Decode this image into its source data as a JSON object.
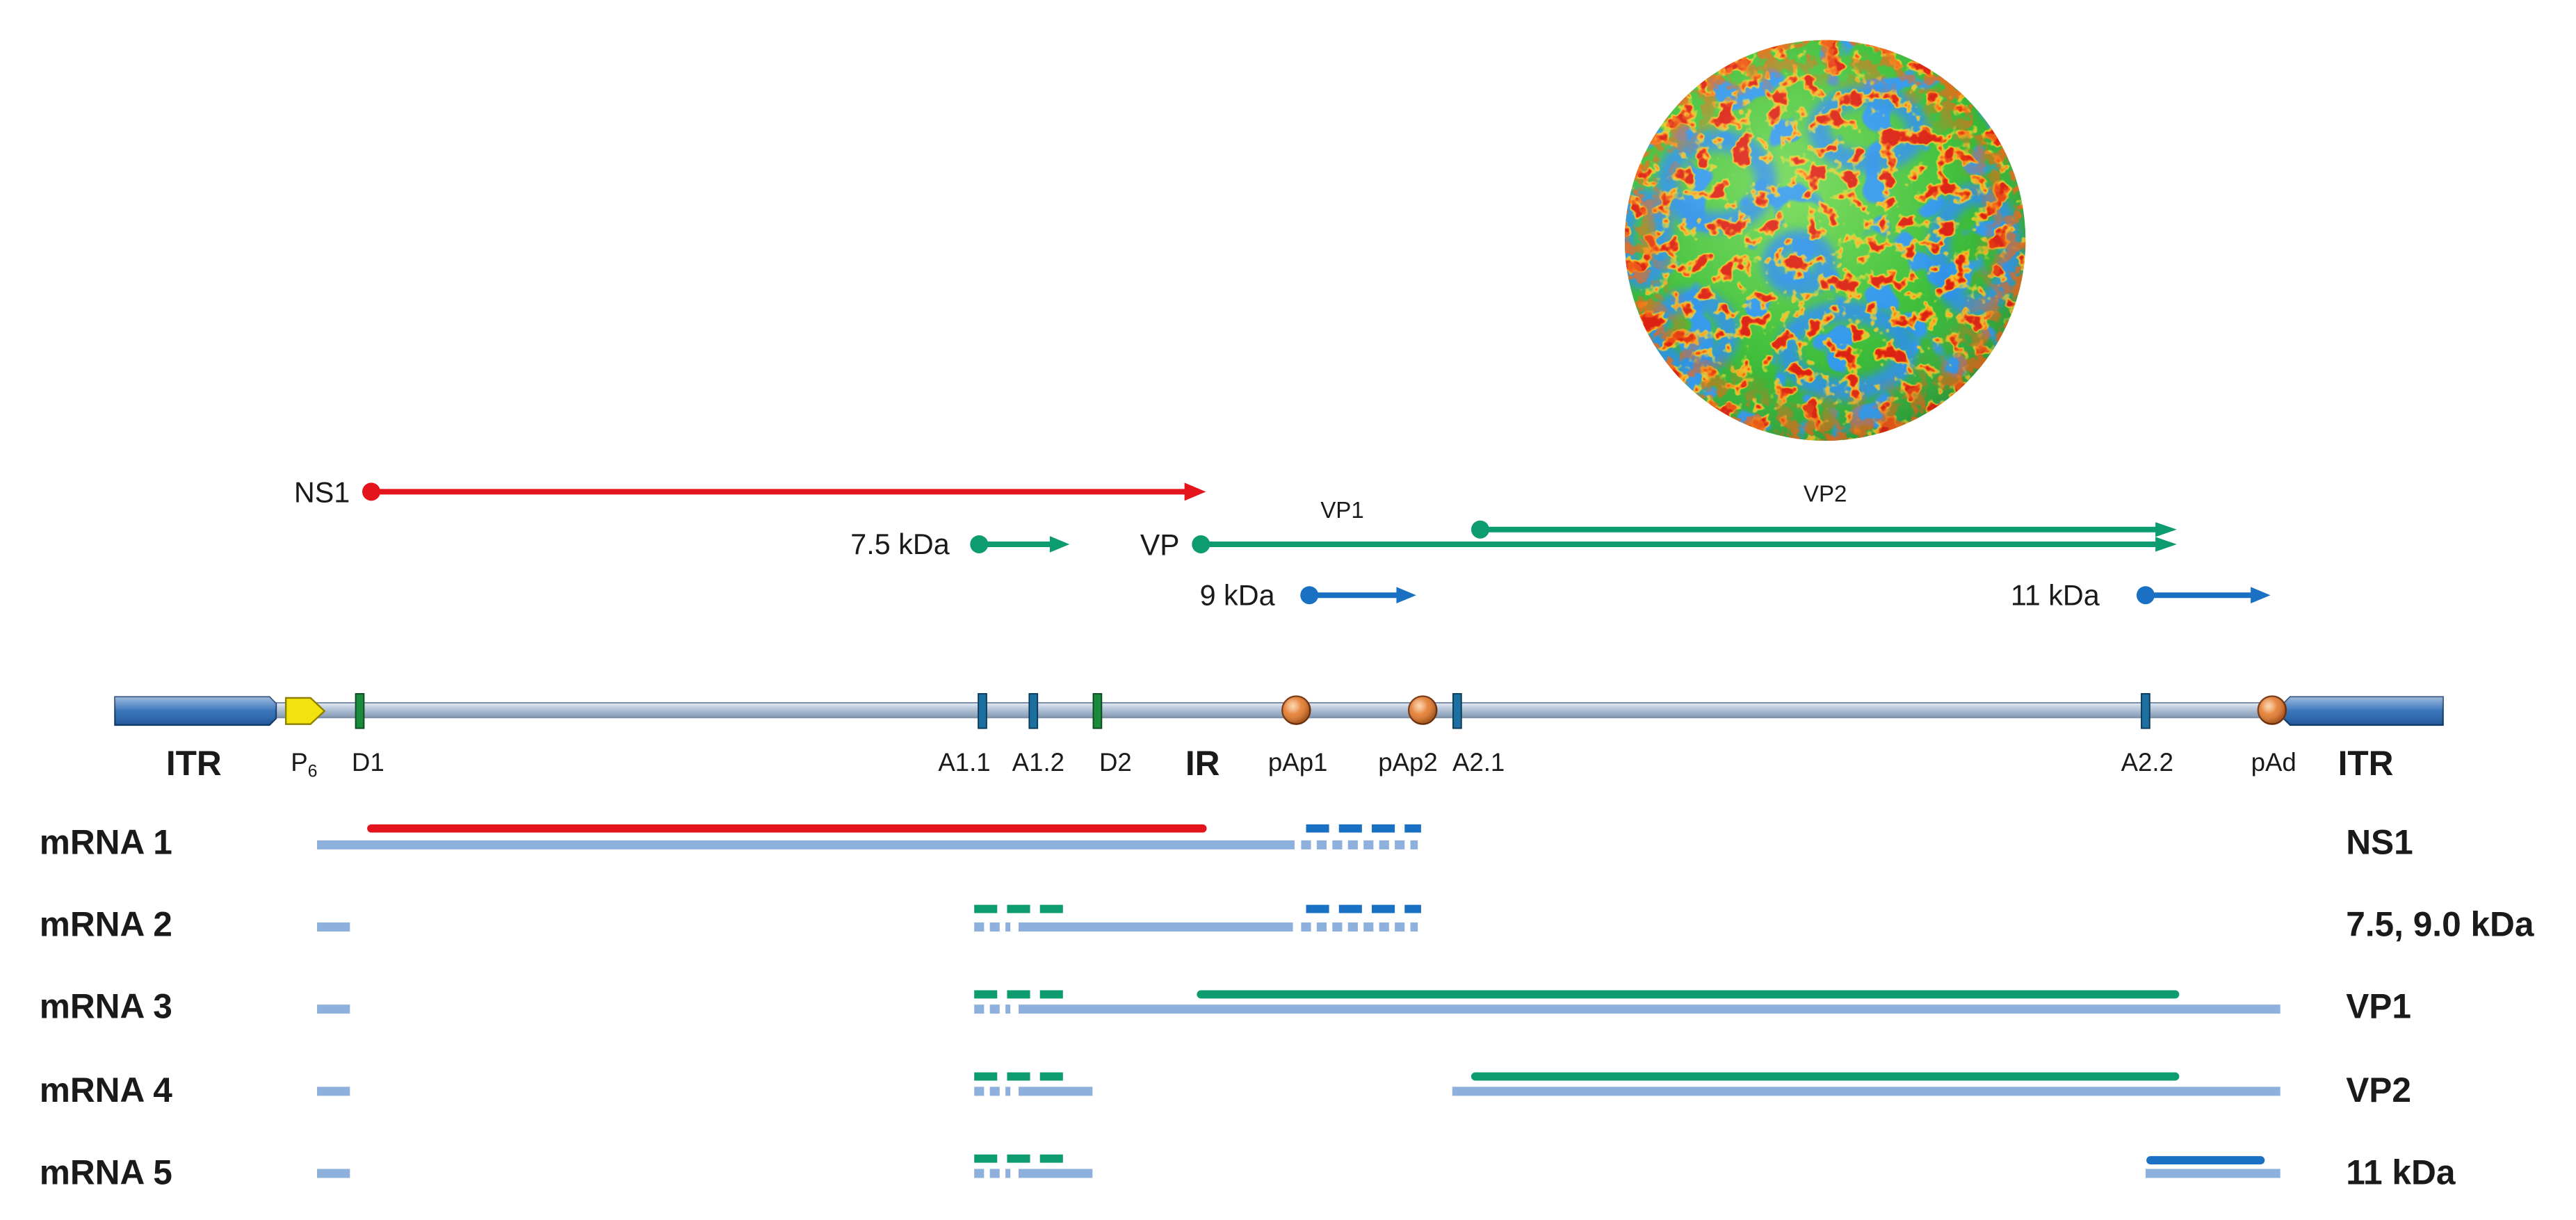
{
  "colors": {
    "ns1_line": "#e3141c",
    "vp_line": "#0d9b70",
    "kda_line": "#1a70c2",
    "transcript_bar": "#8eb0dd",
    "itr_box": "#2566b3",
    "d_marker": "#1c8a3c",
    "a_marker": "#1d6fa0",
    "pa_marker": "#e57a2c",
    "promoter_arrow": "#f2e30f"
  },
  "capsid_image": "virus-capsid",
  "orfs": {
    "ns1": "NS1",
    "p7_5": "7.5 kDa",
    "vp": "VP",
    "vp1": "VP1",
    "vp2": "VP2",
    "p9": "9 kDa",
    "p11": "11 kDa"
  },
  "genome": {
    "itr_left": "ITR",
    "promoter": {
      "letter": "P",
      "subscript": "6"
    },
    "d1": "D1",
    "a1_1": "A1.1",
    "a1_2": "A1.2",
    "d2": "D2",
    "ir": "IR",
    "pap1": "pAp1",
    "pap2": "pAp2",
    "a2_1": "A2.1",
    "a2_2": "A2.2",
    "pad": "pAd",
    "itr_right": "ITR"
  },
  "transcripts": [
    {
      "label": "mRNA 1",
      "product": "NS1"
    },
    {
      "label": "mRNA 2",
      "product": "7.5, 9.0 kDa"
    },
    {
      "label": "mRNA 3",
      "product": "VP1"
    },
    {
      "label": "mRNA 4",
      "product": "VP2"
    },
    {
      "label": "mRNA 5",
      "product": "11 kDa"
    }
  ]
}
